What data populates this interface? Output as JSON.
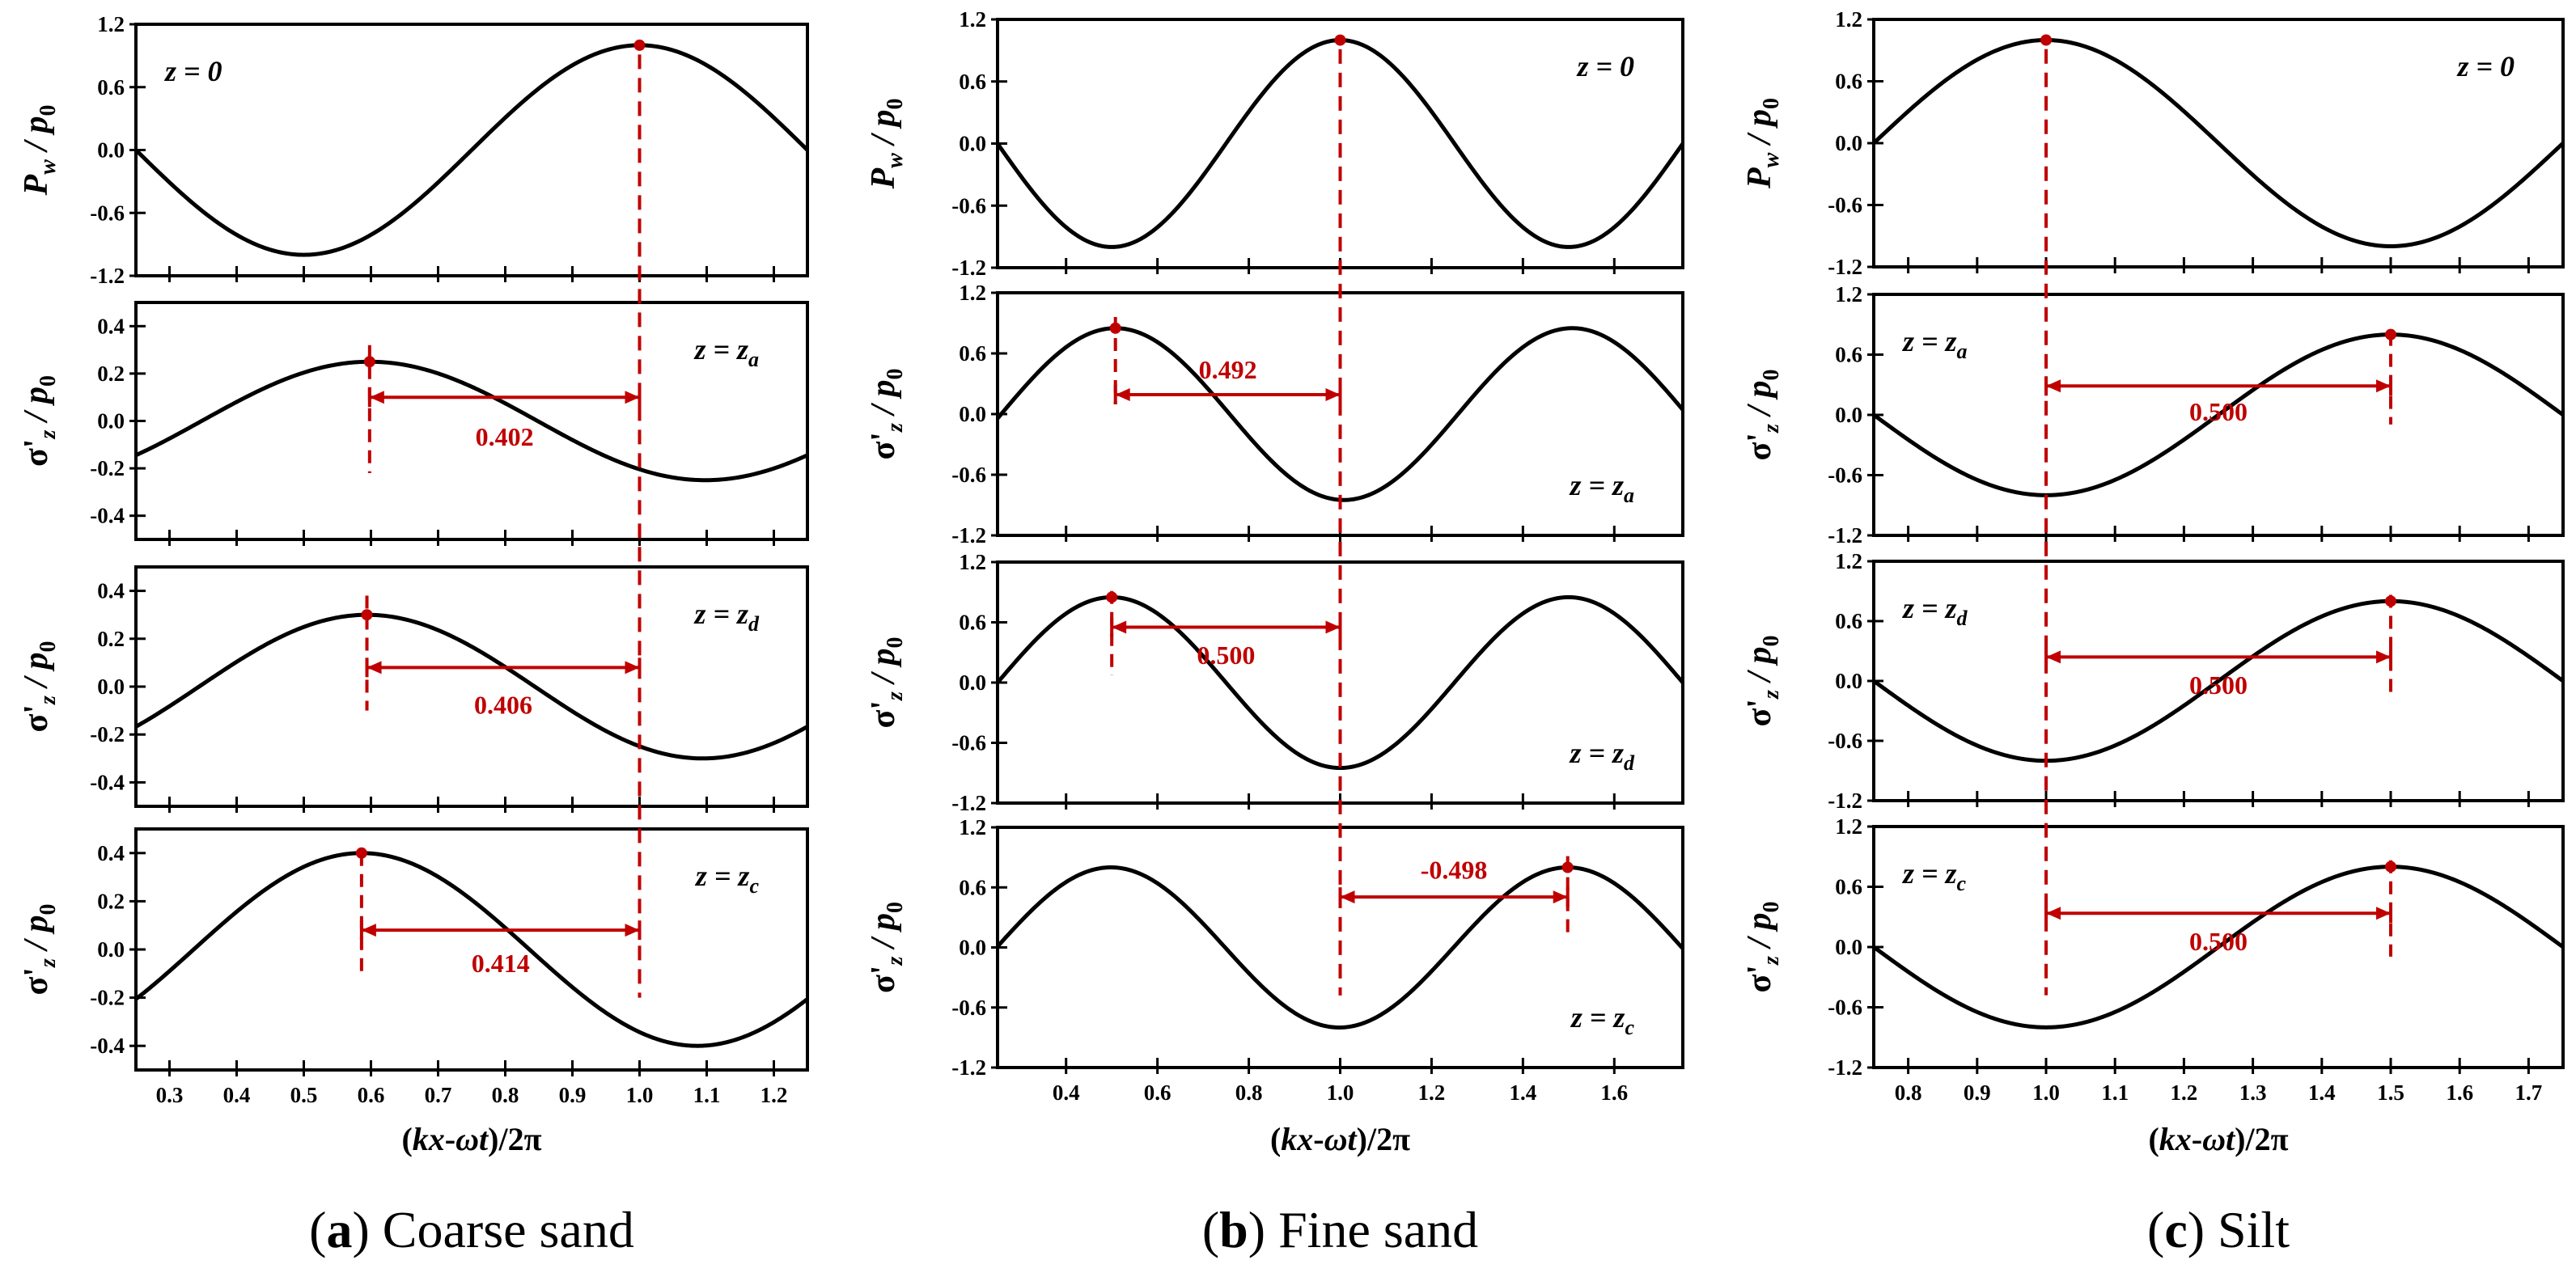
{
  "figure": {
    "xlabel": "(kx-ωt)/2π",
    "subcaptions": [
      {
        "letter": "a",
        "text": "Coarse sand"
      },
      {
        "letter": "b",
        "text": "Fine sand"
      },
      {
        "letter": "c",
        "text": "Silt"
      }
    ]
  },
  "colors": {
    "curve": "#000000",
    "marker": "#c00000",
    "frame": "#000000",
    "background": "#ffffff"
  },
  "chart_data": [
    {
      "type": "line",
      "title": "Coarse sand",
      "xlabel": "(kx-ωt)/2π",
      "xlim": [
        0.25,
        1.25
      ],
      "xticks": [
        0.3,
        0.4,
        0.5,
        0.6,
        0.7,
        0.8,
        0.9,
        1.0,
        1.1,
        1.2
      ],
      "xticklabels": [
        "0.3",
        "0.4",
        "0.5",
        "0.6",
        "0.7",
        "0.8",
        "0.9",
        "1.0",
        "1.1",
        "1.2"
      ],
      "reference_x": 1.0,
      "panels": [
        {
          "ylabel": "P_w / p_0",
          "label": "z = 0",
          "label_pos": "top-left",
          "amplitude": 1.0,
          "peak_x": 1.0,
          "ylim": [
            -1.2,
            1.2
          ],
          "yticks": [
            -1.2,
            -0.6,
            0.0,
            0.6,
            1.2
          ],
          "yticklabels": [
            "-1.2",
            "-0.6",
            "0.0",
            "0.6",
            "1.2"
          ]
        },
        {
          "ylabel": "σ'_z / p_0",
          "label": "z = z_a",
          "label_pos": "top-right",
          "amplitude": 0.25,
          "peak_x": 0.598,
          "ylim": [
            -0.5,
            0.5
          ],
          "yticks": [
            -0.4,
            -0.2,
            0.0,
            0.2,
            0.4
          ],
          "yticklabels": [
            "-0.4",
            "-0.2",
            "0.0",
            "0.2",
            "0.4"
          ],
          "shift": "0.402"
        },
        {
          "ylabel": "σ'_z / p_0",
          "label": "z = z_d",
          "label_pos": "top-right",
          "amplitude": 0.3,
          "peak_x": 0.594,
          "ylim": [
            -0.5,
            0.5
          ],
          "yticks": [
            -0.4,
            -0.2,
            0.0,
            0.2,
            0.4
          ],
          "yticklabels": [
            "-0.4",
            "-0.2",
            "0.0",
            "0.2",
            "0.4"
          ],
          "shift": "0.406"
        },
        {
          "ylabel": "σ'_z / p_0",
          "label": "z = z_c",
          "label_pos": "top-right",
          "amplitude": 0.4,
          "peak_x": 0.586,
          "ylim": [
            -0.5,
            0.5
          ],
          "yticks": [
            -0.4,
            -0.2,
            0.0,
            0.2,
            0.4
          ],
          "yticklabels": [
            "-0.4",
            "-0.2",
            "0.0",
            "0.2",
            "0.4"
          ],
          "shift": "0.414"
        }
      ]
    },
    {
      "type": "line",
      "title": "Fine sand",
      "xlabel": "(kx-ωt)/2π",
      "xlim": [
        0.25,
        1.75
      ],
      "xticks": [
        0.4,
        0.6,
        0.8,
        1.0,
        1.2,
        1.4,
        1.6
      ],
      "xticklabels": [
        "0.4",
        "0.6",
        "0.8",
        "1.0",
        "1.2",
        "1.4",
        "1.6"
      ],
      "reference_x": 1.0,
      "panels": [
        {
          "ylabel": "P_w / p_0",
          "label": "z = 0",
          "label_pos": "top-right",
          "amplitude": 1.0,
          "peak_x": 1.0,
          "ylim": [
            -1.2,
            1.2
          ],
          "yticks": [
            -1.2,
            -0.6,
            0.0,
            0.6,
            1.2
          ],
          "yticklabels": [
            "-1.2",
            "-0.6",
            "0.0",
            "0.6",
            "1.2"
          ]
        },
        {
          "ylabel": "σ'_z / p_0",
          "label": "z = z_a",
          "label_pos": "bottom-right",
          "amplitude": 0.85,
          "peak_x": 0.508,
          "ylim": [
            -1.2,
            1.2
          ],
          "yticks": [
            -1.2,
            -0.6,
            0.0,
            0.6,
            1.2
          ],
          "yticklabels": [
            "-1.2",
            "-0.6",
            "0.0",
            "0.6",
            "1.2"
          ],
          "shift": "0.492"
        },
        {
          "ylabel": "σ'_z / p_0",
          "label": "z = z_d",
          "label_pos": "bottom-right",
          "amplitude": 0.85,
          "peak_x": 0.5,
          "ylim": [
            -1.2,
            1.2
          ],
          "yticks": [
            -1.2,
            -0.6,
            0.0,
            0.6,
            1.2
          ],
          "yticklabels": [
            "-1.2",
            "-0.6",
            "0.0",
            "0.6",
            "1.2"
          ],
          "shift": "0.500"
        },
        {
          "ylabel": "σ'_z / p_0",
          "label": "z = z_c",
          "label_pos": "bottom-right",
          "amplitude": 0.8,
          "peak_x": 1.498,
          "ylim": [
            -1.2,
            1.2
          ],
          "yticks": [
            -1.2,
            -0.6,
            0.0,
            0.6,
            1.2
          ],
          "yticklabels": [
            "-1.2",
            "-0.6",
            "0.0",
            "0.6",
            "1.2"
          ],
          "shift": "-0.498"
        }
      ]
    },
    {
      "type": "line",
      "title": "Silt",
      "xlabel": "(kx-ωt)/2π",
      "xlim": [
        0.75,
        1.75
      ],
      "xticks": [
        0.8,
        0.9,
        1.0,
        1.1,
        1.2,
        1.3,
        1.4,
        1.5,
        1.6,
        1.7
      ],
      "xticklabels": [
        "0.8",
        "0.9",
        "1.0",
        "1.1",
        "1.2",
        "1.3",
        "1.4",
        "1.5",
        "1.6",
        "1.7"
      ],
      "reference_x": 1.0,
      "panels": [
        {
          "ylabel": "P_w / p_0",
          "label": "z = 0",
          "label_pos": "top-right",
          "amplitude": 1.0,
          "peak_x": 1.0,
          "ylim": [
            -1.2,
            1.2
          ],
          "yticks": [
            -1.2,
            -0.6,
            0.0,
            0.6,
            1.2
          ],
          "yticklabels": [
            "-1.2",
            "-0.6",
            "0.0",
            "0.6",
            "1.2"
          ]
        },
        {
          "ylabel": "σ'_z / p_0",
          "label": "z = z_a",
          "label_pos": "top-left",
          "amplitude": 0.8,
          "peak_x": 1.5,
          "ylim": [
            -1.2,
            1.2
          ],
          "yticks": [
            -1.2,
            -0.6,
            0.0,
            0.6,
            1.2
          ],
          "yticklabels": [
            "-1.2",
            "-0.6",
            "0.0",
            "0.6",
            "1.2"
          ],
          "shift": "0.500"
        },
        {
          "ylabel": "σ'_z / p_0",
          "label": "z = z_d",
          "label_pos": "top-left",
          "amplitude": 0.8,
          "peak_x": 1.5,
          "ylim": [
            -1.2,
            1.2
          ],
          "yticks": [
            -1.2,
            -0.6,
            0.0,
            0.6,
            1.2
          ],
          "yticklabels": [
            "-1.2",
            "-0.6",
            "0.0",
            "0.6",
            "1.2"
          ],
          "shift": "0.500"
        },
        {
          "ylabel": "σ'_z / p_0",
          "label": "z = z_c",
          "label_pos": "top-left",
          "amplitude": 0.8,
          "peak_x": 1.5,
          "ylim": [
            -1.2,
            1.2
          ],
          "yticks": [
            -1.2,
            -0.6,
            0.0,
            0.6,
            1.2
          ],
          "yticklabels": [
            "-1.2",
            "-0.6",
            "0.0",
            "0.6",
            "1.2"
          ],
          "shift": "0.500"
        }
      ]
    }
  ]
}
